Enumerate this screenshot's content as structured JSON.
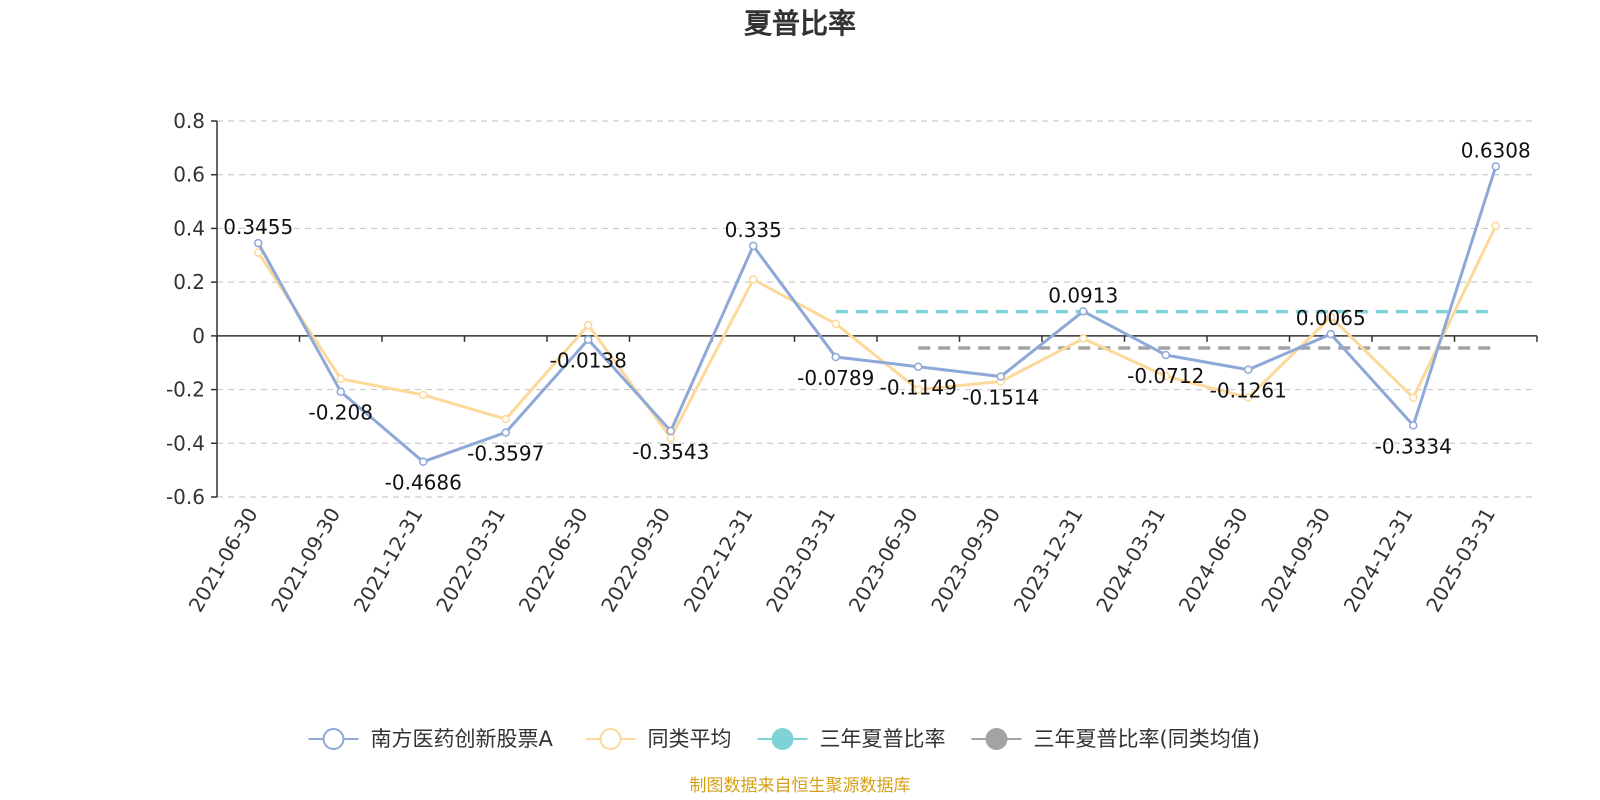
{
  "chart_data": {
    "type": "line",
    "title": "夏普比率",
    "categories": [
      "2021-06-30",
      "2021-09-30",
      "2021-12-31",
      "2022-03-31",
      "2022-06-30",
      "2022-09-30",
      "2022-12-31",
      "2023-03-31",
      "2023-06-30",
      "2023-09-30",
      "2023-12-31",
      "2024-03-31",
      "2024-06-30",
      "2024-09-30",
      "2024-12-31",
      "2025-03-31"
    ],
    "ylim": [
      -0.6,
      0.8
    ],
    "yticks": [
      "0.8",
      "0.6",
      "0.4",
      "0.2",
      "0",
      "-0.2",
      "-0.4",
      "-0.6"
    ],
    "ytick_values": [
      0.8,
      0.6,
      0.4,
      0.2,
      0,
      -0.2,
      -0.4,
      -0.6
    ],
    "grid": true,
    "legend_position": "bottom",
    "series": [
      {
        "name": "南方医药创新股票A",
        "color": "#8ea9d8",
        "values": [
          0.3455,
          -0.208,
          -0.4686,
          -0.3597,
          -0.0138,
          -0.3543,
          0.335,
          -0.0789,
          -0.1149,
          -0.1514,
          0.0913,
          -0.0712,
          -0.1261,
          0.0065,
          -0.3334,
          0.6308
        ],
        "labels": [
          "0.3455",
          "-0.208",
          "-0.4686",
          "-0.3597",
          "-0.0138",
          "-0.3543",
          "0.335",
          "-0.0789",
          "-0.1149",
          "-0.1514",
          "0.0913",
          "-0.0712",
          "-0.1261",
          "0.0065",
          "-0.3334",
          "0.6308"
        ]
      },
      {
        "name": "同类平均",
        "color": "#fcd99a",
        "values": [
          0.31,
          -0.16,
          -0.22,
          -0.31,
          0.04,
          -0.38,
          0.21,
          0.045,
          -0.2,
          -0.17,
          -0.01,
          -0.15,
          -0.23,
          0.07,
          -0.23,
          0.41
        ]
      }
    ],
    "reference_lines": [
      {
        "name": "三年夏普比率",
        "color": "#7fd3d6",
        "value": 0.09,
        "from": "2023-03-31",
        "to": "2025-03-31"
      },
      {
        "name": "三年夏普比率(同类均值)",
        "color": "#a3a3a3",
        "value": -0.045,
        "from": "2023-06-30",
        "to": "2025-03-31"
      }
    ]
  },
  "legend": {
    "items": [
      {
        "label": "南方医药创新股票A",
        "color": "#8ea9d8",
        "style": "hollow"
      },
      {
        "label": "同类平均",
        "color": "#fcd99a",
        "style": "hollow"
      },
      {
        "label": "三年夏普比率",
        "color": "#7fd3d6",
        "style": "filled"
      },
      {
        "label": "三年夏普比率(同类均值)",
        "color": "#a3a3a3",
        "style": "filled"
      }
    ]
  },
  "footer": {
    "source": "制图数据来自恒生聚源数据库"
  }
}
